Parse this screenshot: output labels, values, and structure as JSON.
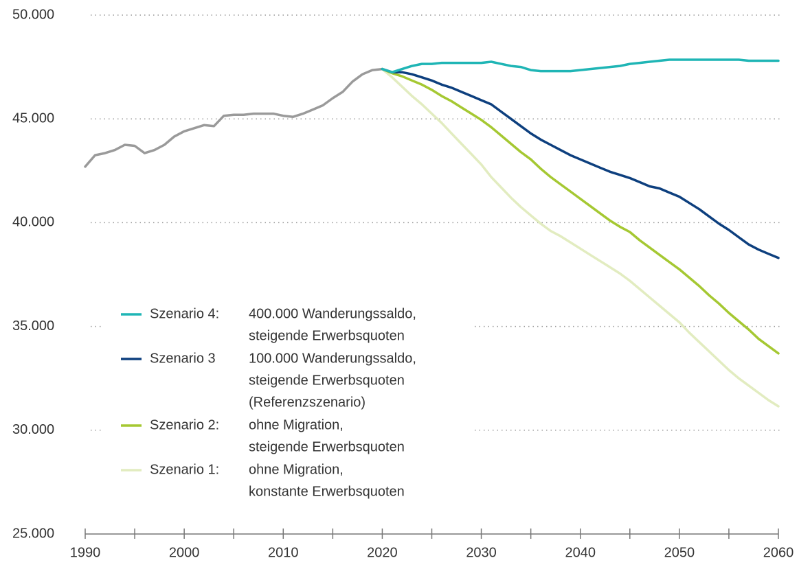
{
  "chart_data": {
    "type": "line",
    "x": [
      1990,
      1991,
      1992,
      1993,
      1994,
      1995,
      1996,
      1997,
      1998,
      1999,
      2000,
      2001,
      2002,
      2003,
      2004,
      2005,
      2006,
      2007,
      2008,
      2009,
      2010,
      2011,
      2012,
      2013,
      2014,
      2015,
      2016,
      2017,
      2018,
      2019,
      2020,
      2021,
      2022,
      2023,
      2024,
      2025,
      2026,
      2027,
      2028,
      2029,
      2030,
      2031,
      2032,
      2033,
      2034,
      2035,
      2036,
      2037,
      2038,
      2039,
      2040,
      2041,
      2042,
      2043,
      2044,
      2045,
      2046,
      2047,
      2048,
      2049,
      2050,
      2051,
      2052,
      2053,
      2054,
      2055,
      2056,
      2057,
      2058,
      2059,
      2060
    ],
    "xlim": [
      1990,
      2060
    ],
    "xticks": [
      1990,
      2000,
      2010,
      2020,
      2030,
      2040,
      2050,
      2060
    ],
    "xminorticks": [
      1995,
      2005,
      2015,
      2025,
      2035,
      2045,
      2055
    ],
    "ylim": [
      25000,
      50000
    ],
    "yticks": [
      {
        "value": 25000,
        "label": "25.000"
      },
      {
        "value": 30000,
        "label": "30.000"
      },
      {
        "value": 35000,
        "label": "35.000"
      },
      {
        "value": 40000,
        "label": "40.000"
      },
      {
        "value": 45000,
        "label": "45.000"
      },
      {
        "value": 50000,
        "label": "50.000"
      }
    ],
    "grid": true,
    "series": [
      {
        "color": "#9a9a9a",
        "values": [
          42700,
          43250,
          43350,
          43500,
          43750,
          43700,
          43350,
          43500,
          43750,
          44150,
          44400,
          44550,
          44700,
          44650,
          45150,
          45200,
          45200,
          45250,
          45250,
          45250,
          45150,
          45100,
          45250,
          45450,
          45650,
          46000,
          46300,
          46800,
          47150,
          47350,
          47400,
          null,
          null,
          null,
          null,
          null,
          null,
          null,
          null,
          null,
          null,
          null,
          null,
          null,
          null,
          null,
          null,
          null,
          null,
          null,
          null,
          null,
          null,
          null,
          null,
          null,
          null,
          null,
          null,
          null,
          null,
          null,
          null,
          null,
          null,
          null,
          null,
          null,
          null,
          null,
          null
        ]
      },
      {
        "name": "Szenario 1:",
        "legend_text": [
          "ohne Migration,",
          "konstante Erwerbsquoten"
        ],
        "color": "#e2ecc0",
        "values": [
          null,
          null,
          null,
          null,
          null,
          null,
          null,
          null,
          null,
          null,
          null,
          null,
          null,
          null,
          null,
          null,
          null,
          null,
          null,
          null,
          null,
          null,
          null,
          null,
          null,
          null,
          null,
          null,
          null,
          null,
          47400,
          47000,
          46550,
          46100,
          45700,
          45250,
          44800,
          44300,
          43800,
          43300,
          42800,
          42200,
          41700,
          41200,
          40750,
          40350,
          39950,
          39600,
          39350,
          39050,
          38750,
          38450,
          38150,
          37850,
          37550,
          37200,
          36800,
          36400,
          36000,
          35600,
          35200,
          34700,
          34250,
          33800,
          33350,
          32900,
          32500,
          32150,
          31800,
          31450,
          31150
        ]
      },
      {
        "name": "Szenario 2:",
        "legend_text": [
          "ohne Migration,",
          "steigende Erwerbsquoten"
        ],
        "color": "#a5c832",
        "values": [
          null,
          null,
          null,
          null,
          null,
          null,
          null,
          null,
          null,
          null,
          null,
          null,
          null,
          null,
          null,
          null,
          null,
          null,
          null,
          null,
          null,
          null,
          null,
          null,
          null,
          null,
          null,
          null,
          null,
          null,
          47400,
          47200,
          47050,
          46850,
          46650,
          46400,
          46100,
          45850,
          45550,
          45250,
          44950,
          44600,
          44200,
          43800,
          43400,
          43050,
          42600,
          42200,
          41850,
          41500,
          41150,
          40800,
          40450,
          40100,
          39800,
          39550,
          39150,
          38800,
          38450,
          38100,
          37750,
          37350,
          36950,
          36500,
          36100,
          35650,
          35250,
          34850,
          34400,
          34050,
          33700
        ]
      },
      {
        "name": "Szenario 3",
        "legend_text": [
          "100.000 Wanderungssaldo,",
          "steigende Erwerbsquoten",
          "(Referenzszenario)"
        ],
        "color": "#0d3f7e",
        "values": [
          null,
          null,
          null,
          null,
          null,
          null,
          null,
          null,
          null,
          null,
          null,
          null,
          null,
          null,
          null,
          null,
          null,
          null,
          null,
          null,
          null,
          null,
          null,
          null,
          null,
          null,
          null,
          null,
          null,
          null,
          47400,
          47250,
          47250,
          47150,
          47000,
          46850,
          46650,
          46500,
          46300,
          46100,
          45900,
          45700,
          45350,
          45000,
          44650,
          44300,
          44000,
          43750,
          43500,
          43250,
          43050,
          42850,
          42650,
          42450,
          42300,
          42150,
          41950,
          41750,
          41650,
          41450,
          41250,
          40950,
          40650,
          40300,
          39950,
          39650,
          39300,
          38950,
          38700,
          38500,
          38300
        ]
      },
      {
        "name": "Szenario 4:",
        "legend_text": [
          "400.000 Wanderungssaldo,",
          "steigende Erwerbsquoten"
        ],
        "color": "#1fb5b5",
        "values": [
          null,
          null,
          null,
          null,
          null,
          null,
          null,
          null,
          null,
          null,
          null,
          null,
          null,
          null,
          null,
          null,
          null,
          null,
          null,
          null,
          null,
          null,
          null,
          null,
          null,
          null,
          null,
          null,
          null,
          null,
          47400,
          47250,
          47400,
          47550,
          47650,
          47650,
          47700,
          47700,
          47700,
          47700,
          47700,
          47750,
          47650,
          47550,
          47500,
          47350,
          47300,
          47300,
          47300,
          47300,
          47350,
          47400,
          47450,
          47500,
          47550,
          47650,
          47700,
          47750,
          47800,
          47850,
          47850,
          47850,
          47850,
          47850,
          47850,
          47850,
          47850,
          47800,
          47800,
          47800,
          47800
        ]
      }
    ]
  }
}
